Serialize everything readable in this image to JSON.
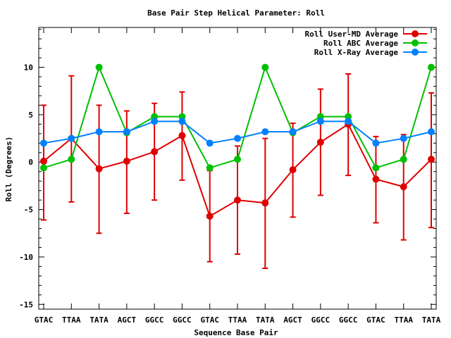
{
  "chart_data": {
    "type": "line",
    "title": "Base Pair Step Helical Parameter: Roll",
    "xlabel": "Sequence Base Pair",
    "ylabel": "Roll (Degrees)",
    "ylim": [
      -15.5,
      14.2
    ],
    "yticks": [
      -15,
      -10,
      -5,
      0,
      5,
      10
    ],
    "grid": false,
    "legend_position": "top-right",
    "categories": [
      "GTAC",
      "TTAA",
      "TATA",
      "AGCT",
      "GGCC",
      "GGCC",
      "GTAC",
      "TTAA",
      "TATA",
      "AGCT",
      "GGCC",
      "GGCC",
      "GTAC",
      "TTAA",
      "TATA"
    ],
    "series": [
      {
        "name": "Roll User-MD Average",
        "color": "#e00000",
        "values": [
          0.1,
          2.5,
          -0.7,
          0.1,
          1.1,
          2.8,
          -5.7,
          -4.0,
          -4.3,
          -0.8,
          2.1,
          4.0,
          -1.8,
          -2.6,
          0.3
        ],
        "error_low": [
          -6.1,
          -4.2,
          -7.5,
          -5.4,
          -4.0,
          -1.9,
          -10.5,
          -9.7,
          -11.2,
          -5.8,
          -3.5,
          -1.4,
          -6.4,
          -8.2,
          -6.9
        ],
        "error_high": [
          6.0,
          9.1,
          6.0,
          5.4,
          6.2,
          7.4,
          -0.9,
          1.7,
          2.5,
          4.1,
          7.7,
          9.3,
          2.7,
          2.9,
          7.3
        ]
      },
      {
        "name": "Roll ABC Average",
        "color": "#00c000",
        "values": [
          -0.6,
          0.3,
          10.0,
          3.1,
          4.8,
          4.8,
          -0.6,
          0.3,
          10.0,
          3.1,
          4.8,
          4.8,
          -0.6,
          0.3,
          10.0
        ]
      },
      {
        "name": "Roll X-Ray Average",
        "color": "#0080ff",
        "values": [
          2.0,
          2.5,
          3.2,
          3.2,
          4.3,
          4.3,
          2.0,
          2.5,
          3.2,
          3.2,
          4.3,
          4.3,
          2.0,
          2.5,
          3.2
        ]
      }
    ]
  }
}
